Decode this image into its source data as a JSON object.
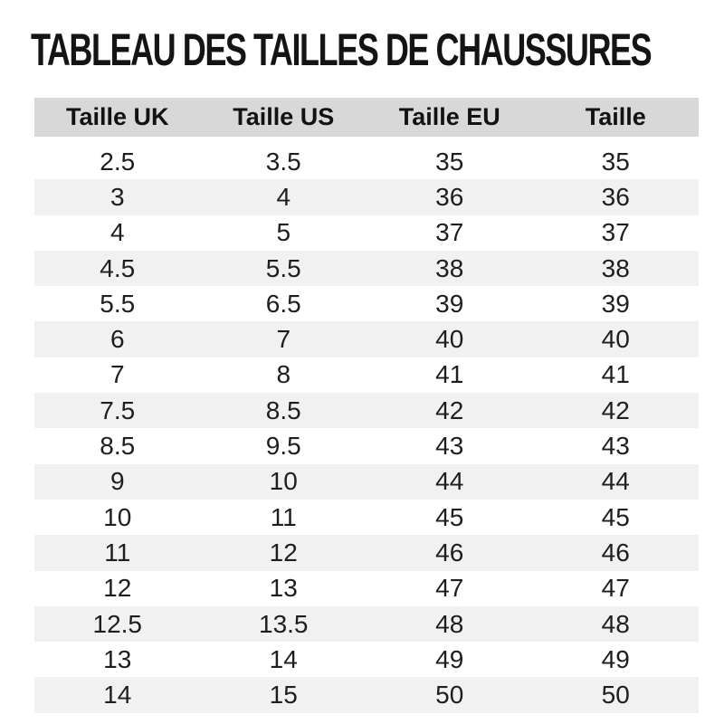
{
  "page": {
    "title": "TABLEAU DES TAILLES DE CHAUSSURES"
  },
  "colors": {
    "background": "#ffffff",
    "header_bg": "#d8d8d8",
    "stripe_bg": "#f1f1f1",
    "title_text": "#141414",
    "body_text": "#1e1e1e"
  },
  "chart_data": {
    "type": "table",
    "title": "TABLEAU DES TAILLES DE CHAUSSURES",
    "columns": [
      "Taille UK",
      "Taille US",
      "Taille EU",
      "Taille"
    ],
    "rows": [
      [
        "2.5",
        "3.5",
        "35",
        "35"
      ],
      [
        "3",
        "4",
        "36",
        "36"
      ],
      [
        "4",
        "5",
        "37",
        "37"
      ],
      [
        "4.5",
        "5.5",
        "38",
        "38"
      ],
      [
        "5.5",
        "6.5",
        "39",
        "39"
      ],
      [
        "6",
        "7",
        "40",
        "40"
      ],
      [
        "7",
        "8",
        "41",
        "41"
      ],
      [
        "7.5",
        "8.5",
        "42",
        "42"
      ],
      [
        "8.5",
        "9.5",
        "43",
        "43"
      ],
      [
        "9",
        "10",
        "44",
        "44"
      ],
      [
        "10",
        "11",
        "45",
        "45"
      ],
      [
        "11",
        "12",
        "46",
        "46"
      ],
      [
        "12",
        "13",
        "47",
        "47"
      ],
      [
        "12.5",
        "13.5",
        "48",
        "48"
      ],
      [
        "13",
        "14",
        "49",
        "49"
      ],
      [
        "14",
        "15",
        "50",
        "50"
      ]
    ],
    "layout": {
      "stripe_pattern": "even rows shaded",
      "first_row_background": "white",
      "column_alignment": "center"
    }
  }
}
